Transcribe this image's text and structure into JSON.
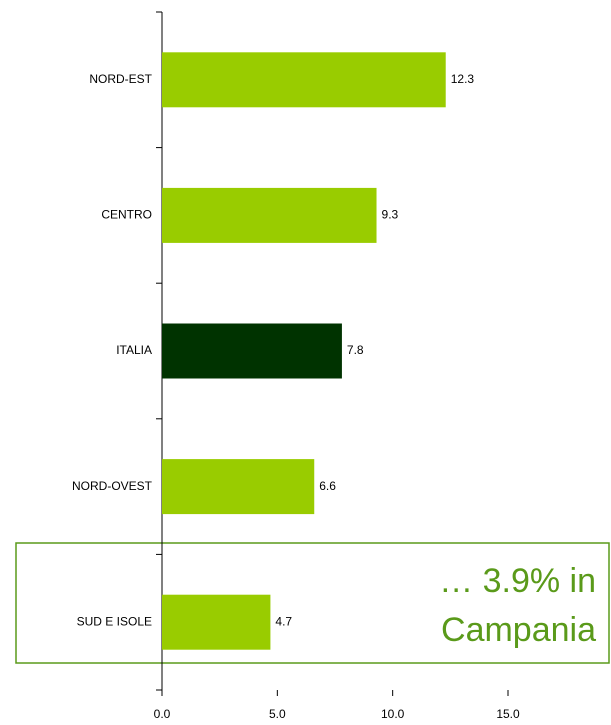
{
  "chart_data": {
    "type": "barh",
    "categories": [
      "NORD-EST",
      "CENTRO",
      "ITALIA",
      "NORD-OVEST",
      "SUD E ISOLE"
    ],
    "values": [
      12.3,
      9.3,
      7.8,
      6.6,
      4.7
    ],
    "colors": [
      "#99cc00",
      "#99cc00",
      "#003300",
      "#99cc00",
      "#99cc00"
    ],
    "xlim": [
      0,
      15
    ],
    "xticks": [
      {
        "value": 0,
        "label": "0.0"
      },
      {
        "value": 5,
        "label": "5.0"
      },
      {
        "value": 10,
        "label": "10.0"
      },
      {
        "value": 15,
        "label": "15.0"
      }
    ],
    "annotation": [
      "… 3.9% in",
      "Campania"
    ]
  }
}
